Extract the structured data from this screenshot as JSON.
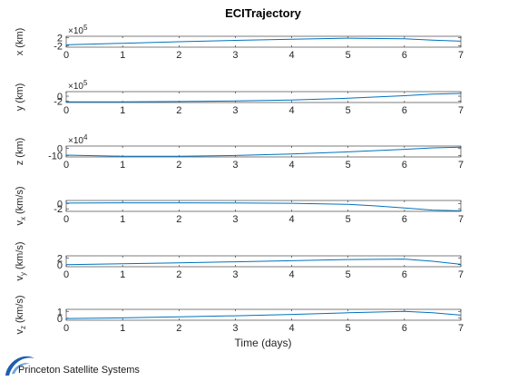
{
  "figure": {
    "title": "ECITrajectory",
    "xlabel": "Time (days)",
    "logo_text": "Princeton Satellite Systems",
    "trace_color": "#0072bd",
    "logo_color": "#1f5fa8"
  },
  "chart_data": [
    {
      "type": "line",
      "ylabel": "x (km)",
      "exponent": "×10^5",
      "ylim": [
        -2.8,
        2.8
      ],
      "yticks": [
        -2,
        2
      ],
      "yticklabels": [
        "-2",
        "2"
      ],
      "x": [
        0,
        1,
        2,
        3,
        4,
        5,
        6,
        6.5,
        7
      ],
      "values": [
        -1.6,
        -0.8,
        0.0,
        0.7,
        1.3,
        1.8,
        1.5,
        0.8,
        0.3
      ],
      "xticks": [
        0,
        1,
        2,
        3,
        4,
        5,
        6,
        7
      ],
      "xlim": [
        0,
        7
      ]
    },
    {
      "type": "line",
      "ylabel": "y (km)",
      "exponent": "×10^5",
      "ylim": [
        -2.5,
        1.8
      ],
      "yticks": [
        -2,
        0
      ],
      "yticklabels": [
        "-2",
        "0"
      ],
      "x": [
        0,
        1,
        2,
        3,
        4,
        5,
        6,
        6.5,
        7
      ],
      "values": [
        -2.2,
        -2.2,
        -2.1,
        -1.9,
        -1.5,
        -0.8,
        0.2,
        0.8,
        1.1
      ],
      "xticks": [
        0,
        1,
        2,
        3,
        4,
        5,
        6,
        7
      ],
      "xlim": [
        0,
        7
      ]
    },
    {
      "type": "line",
      "ylabel": "z (km)",
      "exponent": "×10^4",
      "ylim": [
        -12,
        3
      ],
      "yticks": [
        -10,
        0
      ],
      "yticklabels": [
        "-10",
        "0"
      ],
      "x": [
        0,
        1,
        2,
        3,
        4,
        5,
        6,
        6.5,
        7
      ],
      "values": [
        -9.5,
        -11,
        -11,
        -10,
        -8,
        -5,
        -1.5,
        0.5,
        1.5
      ],
      "xticks": [
        0,
        1,
        2,
        3,
        4,
        5,
        6,
        7
      ],
      "xlim": [
        0,
        7
      ]
    },
    {
      "type": "line",
      "ylabel": "v_x (km/s)",
      "exponent": "",
      "ylim": [
        -3,
        1.2
      ],
      "yticks": [
        -2,
        0
      ],
      "yticklabels": [
        "-2",
        "0"
      ],
      "x": [
        0,
        1,
        2,
        3,
        4,
        5,
        5.5,
        6,
        6.5,
        7
      ],
      "values": [
        0.2,
        0.3,
        0.3,
        0.25,
        0.1,
        -0.3,
        -0.9,
        -1.7,
        -2.5,
        -2.8
      ],
      "xticks": [
        0,
        1,
        2,
        3,
        4,
        5,
        6,
        7
      ],
      "xlim": [
        0,
        7
      ]
    },
    {
      "type": "line",
      "ylabel": "v_y (km/s)",
      "exponent": "",
      "ylim": [
        -0.6,
        2.6
      ],
      "yticks": [
        0,
        2
      ],
      "yticklabels": [
        "0",
        "2"
      ],
      "x": [
        0,
        1,
        2,
        3,
        4,
        5,
        6,
        6.5,
        7
      ],
      "values": [
        0.0,
        0.25,
        0.55,
        0.85,
        1.15,
        1.5,
        1.65,
        1.0,
        0.1
      ],
      "xticks": [
        0,
        1,
        2,
        3,
        4,
        5,
        6,
        7
      ],
      "xlim": [
        0,
        7
      ]
    },
    {
      "type": "line",
      "ylabel": "v_z (km/s)",
      "exponent": "",
      "ylim": [
        -0.3,
        1.3
      ],
      "yticks": [
        0,
        1
      ],
      "yticklabels": [
        "0",
        "1"
      ],
      "x": [
        0,
        1,
        2,
        3,
        4,
        5,
        6,
        6.5,
        7
      ],
      "values": [
        -0.05,
        0.05,
        0.2,
        0.35,
        0.55,
        0.8,
        1.0,
        0.8,
        0.45
      ],
      "xticks": [
        0,
        1,
        2,
        3,
        4,
        5,
        6,
        7
      ],
      "xlim": [
        0,
        7
      ]
    }
  ]
}
